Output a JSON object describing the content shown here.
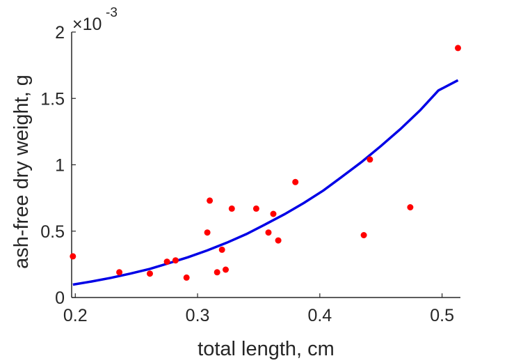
{
  "chart_data": {
    "type": "scatter",
    "xlabel": "total length, cm",
    "ylabel": "ash-free dry weight, g",
    "y_exponent": {
      "base": "×10",
      "power": "-3"
    },
    "xlim": [
      0.197,
      0.515
    ],
    "ylim": [
      0,
      2
    ],
    "xticks": [
      0.2,
      0.3,
      0.4,
      0.5
    ],
    "xtick_labels": [
      "0.2",
      "0.3",
      "0.4",
      "0.5"
    ],
    "yticks": [
      0,
      0.5,
      1,
      1.5,
      2
    ],
    "ytick_labels": [
      "0",
      "0.5",
      "1",
      "1.5",
      "2"
    ],
    "grid": false,
    "colors": {
      "points": "#ff0000",
      "fit": "#0000e6",
      "axis": "#262626"
    },
    "series": [
      {
        "type": "scatter",
        "x": [
          0.198,
          0.236,
          0.261,
          0.275,
          0.282,
          0.291,
          0.308,
          0.31,
          0.316,
          0.32,
          0.323,
          0.328,
          0.348,
          0.358,
          0.362,
          0.366,
          0.38,
          0.436,
          0.441,
          0.474,
          0.513
        ],
        "y": [
          0.31,
          0.19,
          0.18,
          0.27,
          0.28,
          0.15,
          0.49,
          0.73,
          0.19,
          0.36,
          0.21,
          0.67,
          0.67,
          0.49,
          0.63,
          0.43,
          0.87,
          0.47,
          1.04,
          0.68,
          1.88
        ]
      },
      {
        "type": "line",
        "x": [
          0.198,
          0.213,
          0.229,
          0.245,
          0.261,
          0.276,
          0.292,
          0.308,
          0.324,
          0.34,
          0.355,
          0.371,
          0.387,
          0.403,
          0.418,
          0.434,
          0.45,
          0.466,
          0.482,
          0.497,
          0.513
        ],
        "y": [
          0.097,
          0.12,
          0.148,
          0.18,
          0.216,
          0.257,
          0.303,
          0.355,
          0.413,
          0.478,
          0.549,
          0.627,
          0.713,
          0.807,
          0.909,
          1.02,
          1.141,
          1.27,
          1.41,
          1.56,
          1.637
        ]
      }
    ]
  }
}
